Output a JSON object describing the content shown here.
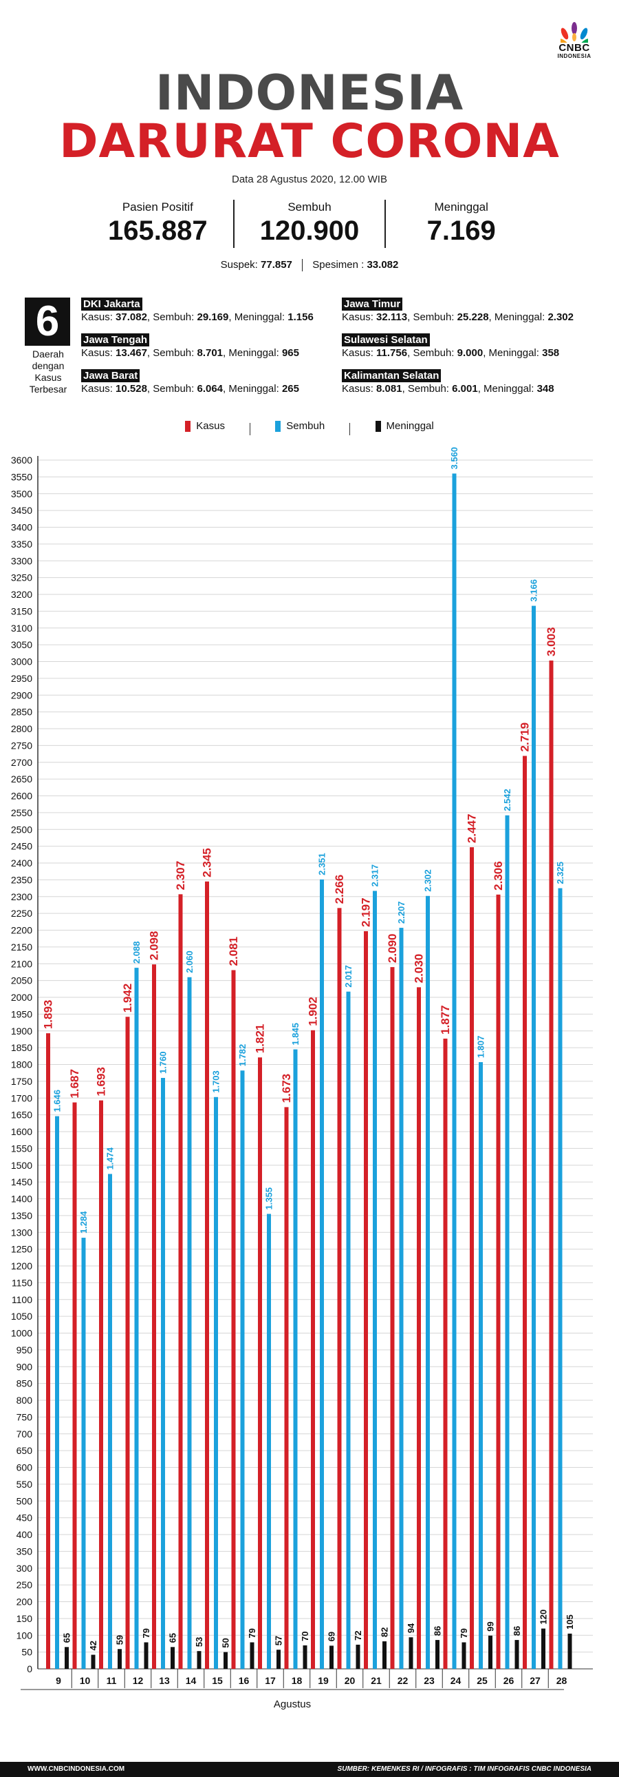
{
  "brand": {
    "name": "CNBC",
    "sub": "INDONESIA"
  },
  "title": {
    "line1": "INDONESIA",
    "line2": "DARURAT CORONA"
  },
  "dateline": "Data 28 Agustus 2020, 12.00 WIB",
  "stats": [
    {
      "label": "Pasien Positif",
      "value": "165.887"
    },
    {
      "label": "Sembuh",
      "value": "120.900"
    },
    {
      "label": "Meninggal",
      "value": "7.169"
    }
  ],
  "sub_stats": {
    "suspek_label": "Suspek:",
    "suspek_value": "77.857",
    "spesimen_label": "Spesimen :",
    "spesimen_value": "33.082"
  },
  "top_regions": {
    "count": "6",
    "caption": "Daerah dengan Kasus Terbesar",
    "items": [
      {
        "name": "DKI Jakarta",
        "kasus": "37.082",
        "sembuh": "29.169",
        "meninggal": "1.156"
      },
      {
        "name": "Jawa Tengah",
        "kasus": "13.467",
        "sembuh": "8.701",
        "meninggal": "965"
      },
      {
        "name": "Jawa Barat",
        "kasus": "10.528",
        "sembuh": "6.064",
        "meninggal": "265"
      },
      {
        "name": "Jawa Timur",
        "kasus": "32.113",
        "sembuh": "25.228",
        "meninggal": "2.302"
      },
      {
        "name": "Sulawesi Selatan",
        "kasus": "11.756",
        "sembuh": "9.000",
        "meninggal": "358"
      },
      {
        "name": "Kalimantan Selatan",
        "kasus": "8.081",
        "sembuh": "6.001",
        "meninggal": "348"
      }
    ],
    "labels": {
      "kasus": "Kasus:",
      "sembuh": "Sembuh:",
      "meninggal": "Meninggal:"
    }
  },
  "colors": {
    "kasus": "#d42027",
    "sembuh": "#1ba1dc",
    "meninggal": "#111111",
    "title_gray": "#4a4a4a"
  },
  "chart_data": {
    "type": "bar",
    "xlabel": "Agustus",
    "ylabel": "",
    "ylim": [
      0,
      3600
    ],
    "ytick_step": 50,
    "grid": true,
    "legend_position": "top",
    "categories": [
      "9",
      "10",
      "11",
      "12",
      "13",
      "14",
      "15",
      "16",
      "17",
      "18",
      "19",
      "20",
      "21",
      "22",
      "23",
      "24",
      "25",
      "26",
      "27",
      "28"
    ],
    "series": [
      {
        "name": "Kasus",
        "color": "#d42027",
        "values": [
          1893,
          1687,
          1693,
          1942,
          2098,
          2307,
          2345,
          2081,
          1821,
          1673,
          1902,
          2266,
          2197,
          2090,
          2030,
          1877,
          2447,
          2306,
          2719,
          3003
        ],
        "labels": [
          "1.893",
          "1.687",
          "1.693",
          "1.942",
          "2.098",
          "2.307",
          "2.345",
          "2.081",
          "1.821",
          "1.673",
          "1.902",
          "2.266",
          "2.197",
          "2.090",
          "2.030",
          "1.877",
          "2.447",
          "2.306",
          "2.719",
          "3.003"
        ]
      },
      {
        "name": "Sembuh",
        "color": "#1ba1dc",
        "values": [
          1646,
          1284,
          1474,
          2088,
          1760,
          2060,
          1703,
          1782,
          1355,
          1845,
          2351,
          2017,
          2317,
          2207,
          2302,
          3560,
          1807,
          2542,
          3166,
          2325
        ],
        "labels": [
          "1.646",
          "1.284",
          "1.474",
          "2.088",
          "1.760",
          "2.060",
          "1.703",
          "1.782",
          "1.355",
          "1.845",
          "2.351",
          "2.017",
          "2.317",
          "2.207",
          "2.302",
          "3.560",
          "1.807",
          "2.542",
          "3.166",
          "2.325"
        ]
      },
      {
        "name": "Meninggal",
        "color": "#111111",
        "values": [
          65,
          42,
          59,
          79,
          65,
          53,
          50,
          79,
          57,
          70,
          69,
          72,
          82,
          94,
          86,
          79,
          99,
          86,
          120,
          105
        ],
        "labels": [
          "65",
          "42",
          "59",
          "79",
          "65",
          "53",
          "50",
          "79",
          "57",
          "70",
          "69",
          "72",
          "82",
          "94",
          "86",
          "79",
          "99",
          "86",
          "120",
          "105"
        ]
      }
    ]
  },
  "footer": {
    "left": "WWW.CNBCINDONESIA.COM",
    "right": "SUMBER: KEMENKES RI / INFOGRAFIS : TIM INFOGRAFIS CNBC INDONESIA"
  }
}
